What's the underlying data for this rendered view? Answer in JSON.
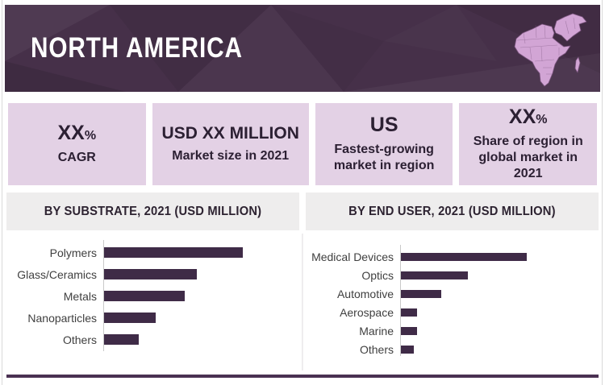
{
  "header": {
    "title": "NORTH AMERICA"
  },
  "stat_cards": [
    {
      "value": "XX",
      "value_suffix": "%",
      "label": "CAGR"
    },
    {
      "value": "USD XX MILLION",
      "label": "Market size in 2021"
    },
    {
      "value": "US",
      "label": "Fastest-growing market in region"
    },
    {
      "value": "XX",
      "value_suffix": "%",
      "label": "Share of region in global market in 2021"
    }
  ],
  "colors": {
    "header_bg": "#463049",
    "title_text": "#ffffff",
    "map_fill": "#d2a5d5",
    "map_stroke": "#7c5680",
    "card_bg": "#e3d1e5",
    "card_text": "#2c2033",
    "section_bg": "#eeeded",
    "section_text": "#2d2331",
    "bar": "#3f2b47",
    "axis": "#c9c9c9",
    "label_text": "#3f3f3f",
    "bottom_rule": "#4a3152"
  },
  "chart_data": [
    {
      "type": "bar",
      "orientation": "horizontal",
      "title": "BY SUBSTRATE, 2021 (USD MILLION)",
      "categories": [
        "Polymers",
        "Glass/Ceramics",
        "Metals",
        "Nanoparticles",
        "Others"
      ],
      "values": [
        100,
        67,
        58,
        37,
        25
      ],
      "values_scale": "relative, longest bar = 100 (numeric values not labeled in figure)",
      "legend": false,
      "gridlines": false
    },
    {
      "type": "bar",
      "orientation": "horizontal",
      "title": "BY END USER, 2021 (USD MILLION)",
      "categories": [
        "Medical Devices",
        "Optics",
        "Automotive",
        "Aerospace",
        "Marine",
        "Others"
      ],
      "values": [
        100,
        53,
        32,
        13,
        13,
        10
      ],
      "values_scale": "relative, longest bar = 100 (numeric values not labeled in figure)",
      "legend": false,
      "gridlines": false
    }
  ]
}
